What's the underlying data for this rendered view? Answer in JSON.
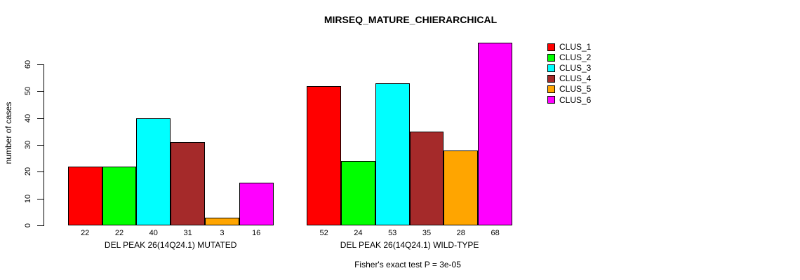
{
  "title": "MIRSEQ_MATURE_CHIERARCHICAL",
  "chart_data": {
    "type": "bar",
    "title": "MIRSEQ_MATURE_CHIERARCHICAL",
    "ylabel": "number of cases",
    "xlabel": "",
    "ylim": [
      0,
      68
    ],
    "yticks": [
      0,
      10,
      20,
      30,
      40,
      50,
      60
    ],
    "grid": false,
    "legend_position": "top-right",
    "series": [
      {
        "name": "CLUS_1",
        "color": "#FF0000"
      },
      {
        "name": "CLUS_2",
        "color": "#00FF00"
      },
      {
        "name": "CLUS_3",
        "color": "#00FFFF"
      },
      {
        "name": "CLUS_4",
        "color": "#A52A2A"
      },
      {
        "name": "CLUS_5",
        "color": "#FFA500"
      },
      {
        "name": "CLUS_6",
        "color": "#FF00FF"
      }
    ],
    "groups": [
      {
        "label": "DEL PEAK 26(14Q24.1) MUTATED",
        "values": [
          22,
          22,
          40,
          31,
          3,
          16
        ]
      },
      {
        "label": "DEL PEAK 26(14Q24.1) WILD-TYPE",
        "values": [
          52,
          24,
          53,
          35,
          28,
          68
        ]
      }
    ],
    "bar_value_labels": true,
    "annotation": "Fisher's exact test P = 3e-05"
  }
}
